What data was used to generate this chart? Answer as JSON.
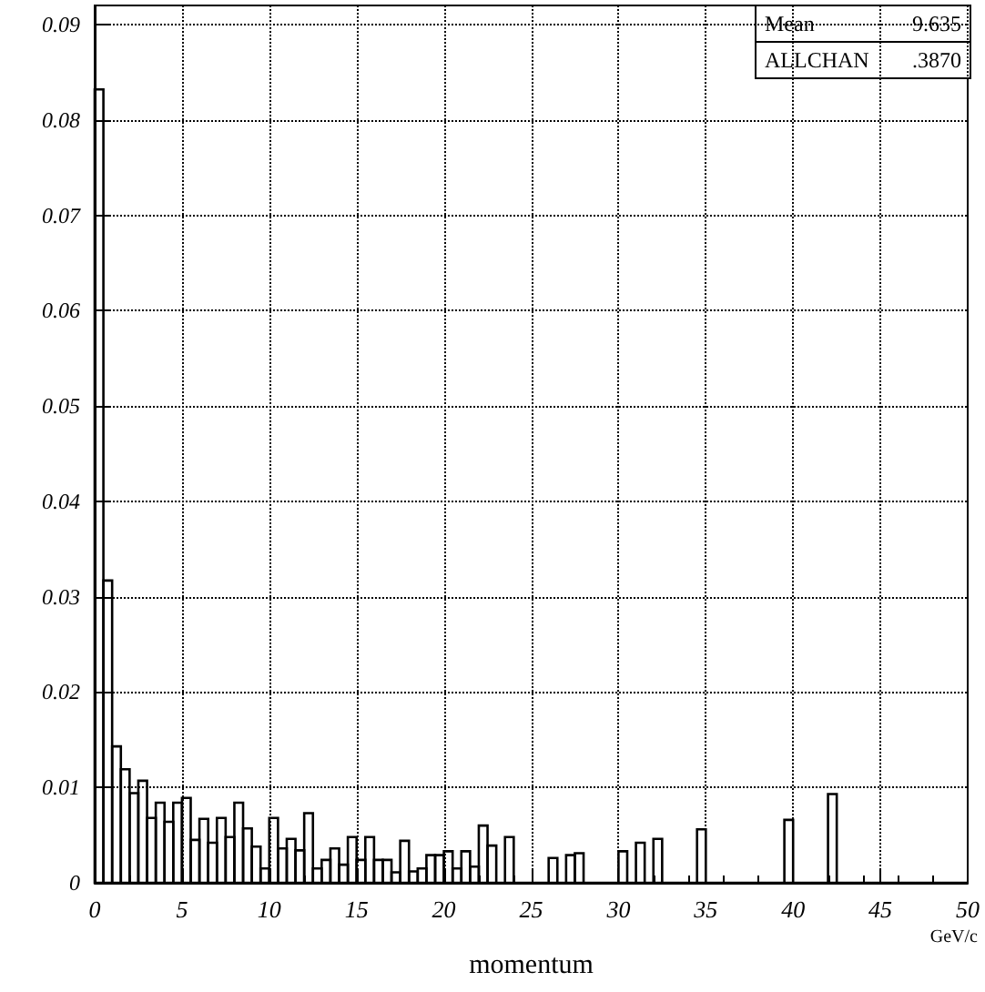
{
  "chart_data": {
    "type": "histogram",
    "xlabel": "momentum",
    "bins": [
      0,
      0.5,
      1,
      1.5,
      2,
      2.5,
      3,
      3.5,
      4,
      4.5,
      5,
      5.5,
      6,
      6.5,
      7,
      7.5,
      8,
      8.5,
      9,
      9.5,
      10,
      10.5,
      11,
      11.5,
      12,
      12.5,
      13,
      13.5,
      14,
      14.5,
      15,
      15.5,
      16,
      16.5,
      17,
      17.5,
      18,
      18.5,
      19,
      19.5,
      20,
      20.5,
      21,
      21.5,
      22,
      22.5,
      23,
      23.5,
      24,
      24.5,
      25,
      25.5,
      26,
      26.5,
      27,
      27.5,
      28,
      28.5,
      29,
      29.5,
      30,
      30.5,
      31,
      31.5,
      32,
      32.5,
      33,
      33.5,
      34,
      34.5,
      35,
      35.5,
      36,
      36.5,
      37,
      37.5,
      38,
      38.5,
      39,
      39.5,
      40,
      40.5,
      41,
      41.5,
      42,
      42.5,
      43,
      43.5,
      44,
      44.5,
      45,
      45.5,
      46,
      46.5,
      47,
      47.5,
      48,
      48.5,
      49,
      49.5,
      50
    ],
    "values": [
      0.0832,
      0.0317,
      0.0143,
      0.0119,
      0.0094,
      0.0107,
      0.0068,
      0.0084,
      0.0064,
      0.0084,
      0.0089,
      0.0045,
      0.0067,
      0.0042,
      0.0068,
      0.0048,
      0.0084,
      0.0057,
      0.0038,
      0.0015,
      0.0068,
      0.0036,
      0.0046,
      0.0034,
      0.0073,
      0.0015,
      0.0024,
      0.0036,
      0.0019,
      0.0048,
      0.0024,
      0.0048,
      0.0024,
      0.0024,
      0.0011,
      0.0044,
      0.0012,
      0.0015,
      0.0029,
      0.0029,
      0.0033,
      0.0015,
      0.0033,
      0.0017,
      0.006,
      0.0039,
      0,
      0.0048,
      0,
      0,
      0,
      0,
      0.0026,
      0,
      0.0029,
      0.0031,
      0,
      0,
      0,
      0,
      0.0033,
      0,
      0.0042,
      0,
      0.0046,
      0,
      0,
      0,
      0,
      0.0056,
      0,
      0,
      0,
      0,
      0,
      0,
      0,
      0,
      0,
      0.0066,
      0,
      0,
      0,
      0,
      0.0093,
      0,
      0,
      0,
      0,
      0,
      0,
      0,
      0,
      0,
      0,
      0,
      0,
      0,
      0,
      0
    ],
    "color": "#000000",
    "xlim": [
      0,
      50
    ],
    "xticks": [
      0,
      5,
      10,
      15,
      20,
      25,
      30,
      35,
      40,
      45,
      50
    ],
    "ylim": [
      0,
      0.092
    ],
    "yticks": [
      0,
      0.01,
      0.02,
      0.03,
      0.04,
      0.05,
      0.06,
      0.07,
      0.08,
      0.09
    ],
    "grid": true,
    "annotations": [
      "Mean",
      "9.635",
      "ALLCHAN",
      ".3870",
      "GeV/c"
    ]
  }
}
